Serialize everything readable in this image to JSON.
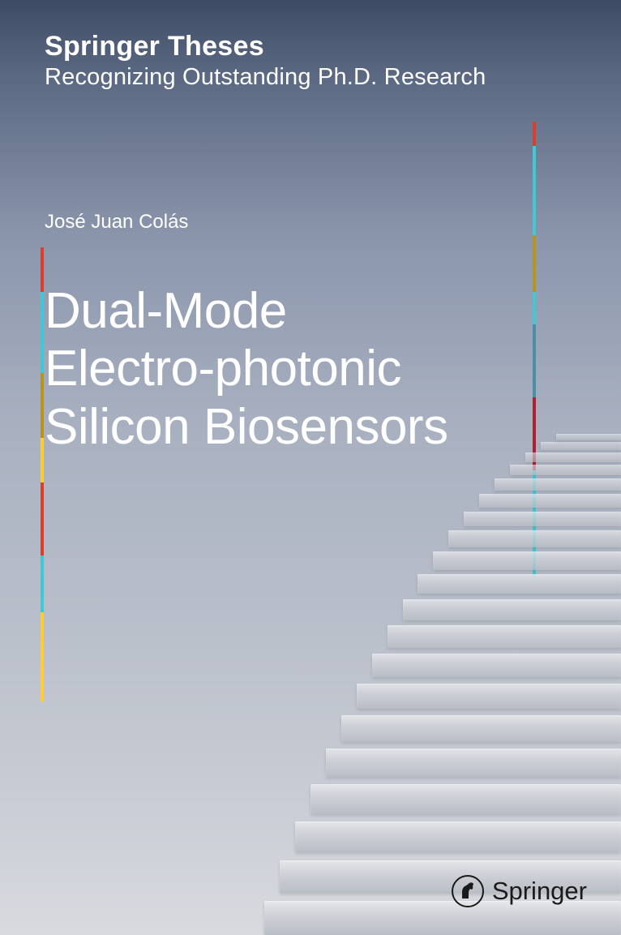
{
  "series": {
    "title": "Springer Theses",
    "subtitle": "Recognizing Outstanding Ph.D. Research"
  },
  "author": "José Juan Colás",
  "title_line1": "Dual-Mode",
  "title_line2": "Electro-photonic",
  "title_line3": "Silicon Biosensors",
  "publisher": "Springer",
  "stripe_left": {
    "segments": [
      {
        "color": "#d93f2b",
        "height": 55
      },
      {
        "color": "#3fc9d6",
        "height": 100
      },
      {
        "color": "#b8941f",
        "height": 80
      },
      {
        "color": "#ffcc33",
        "height": 55
      },
      {
        "color": "#d93f2b",
        "height": 90
      },
      {
        "color": "#3fc9d6",
        "height": 70
      },
      {
        "color": "#ffcc33",
        "height": 110
      }
    ]
  },
  "stripe_right": {
    "segments": [
      {
        "color": "#d93f2b",
        "height": 30
      },
      {
        "color": "#3fc9d6",
        "height": 110
      },
      {
        "color": "#b8941f",
        "height": 70
      },
      {
        "color": "#3fc9d6",
        "height": 40
      },
      {
        "color": "#4a8fa8",
        "height": 90
      },
      {
        "color": "#b02030",
        "height": 90
      },
      {
        "color": "#3fc9d6",
        "height": 130
      }
    ]
  },
  "steps": {
    "count": 20,
    "base_color_top": "#e8e9ec",
    "base_color_bottom": "#b8bcc5"
  }
}
